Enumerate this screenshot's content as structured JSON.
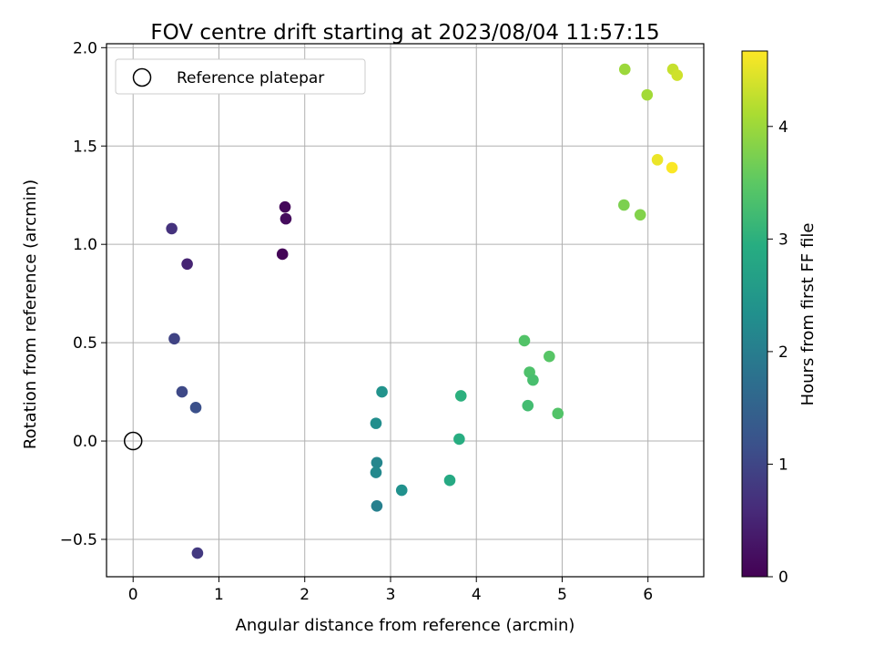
{
  "chart_data": {
    "type": "scatter",
    "title": "FOV centre drift starting at 2023/08/04 11:57:15",
    "xlabel": "Angular distance from reference (arcmin)",
    "ylabel": "Rotation from reference (arcmin)",
    "xlim": [
      -0.31,
      6.65
    ],
    "ylim": [
      -0.69,
      2.02
    ],
    "x_ticks": [
      0,
      1,
      2,
      3,
      4,
      5,
      6
    ],
    "y_ticks": [
      -0.5,
      0.0,
      0.5,
      1.0,
      1.5,
      2.0
    ],
    "x_tick_labels": [
      "0",
      "1",
      "2",
      "3",
      "4",
      "5",
      "6"
    ],
    "y_tick_labels": [
      "−0.5",
      "0.0",
      "0.5",
      "1.0",
      "1.5",
      "2.0"
    ],
    "grid": true,
    "legend": {
      "position": "top-left",
      "label": "Reference platepar"
    },
    "reference_point": {
      "x": 0.0,
      "y": 0.0
    },
    "colorbar": {
      "label": "Hours from first FF file",
      "range": [
        0,
        4.67
      ],
      "ticks": [
        0,
        1,
        2,
        3,
        4
      ],
      "tick_labels": [
        "0",
        "1",
        "2",
        "3",
        "4"
      ],
      "colormap": "viridis"
    },
    "points": [
      {
        "x": 1.74,
        "y": 0.95,
        "c": 0.05
      },
      {
        "x": 1.77,
        "y": 1.19,
        "c": 0.1
      },
      {
        "x": 1.78,
        "y": 1.13,
        "c": 0.15
      },
      {
        "x": 0.63,
        "y": 0.9,
        "c": 0.5
      },
      {
        "x": 0.45,
        "y": 1.08,
        "c": 0.7
      },
      {
        "x": 0.75,
        "y": -0.57,
        "c": 0.8
      },
      {
        "x": 0.48,
        "y": 0.52,
        "c": 0.95
      },
      {
        "x": 0.57,
        "y": 0.25,
        "c": 1.05
      },
      {
        "x": 0.73,
        "y": 0.17,
        "c": 1.15
      },
      {
        "x": 2.84,
        "y": -0.33,
        "c": 2.05
      },
      {
        "x": 2.84,
        "y": -0.11,
        "c": 2.15
      },
      {
        "x": 2.83,
        "y": -0.16,
        "c": 2.2
      },
      {
        "x": 2.83,
        "y": 0.09,
        "c": 2.3
      },
      {
        "x": 2.9,
        "y": 0.25,
        "c": 2.4
      },
      {
        "x": 3.13,
        "y": -0.25,
        "c": 2.35
      },
      {
        "x": 3.69,
        "y": -0.2,
        "c": 2.85
      },
      {
        "x": 3.8,
        "y": 0.01,
        "c": 2.95
      },
      {
        "x": 3.82,
        "y": 0.23,
        "c": 3.0
      },
      {
        "x": 4.56,
        "y": 0.51,
        "c": 3.4
      },
      {
        "x": 4.62,
        "y": 0.35,
        "c": 3.35
      },
      {
        "x": 4.66,
        "y": 0.31,
        "c": 3.3
      },
      {
        "x": 4.6,
        "y": 0.18,
        "c": 3.25
      },
      {
        "x": 4.85,
        "y": 0.43,
        "c": 3.45
      },
      {
        "x": 4.95,
        "y": 0.14,
        "c": 3.4
      },
      {
        "x": 5.72,
        "y": 1.2,
        "c": 3.75
      },
      {
        "x": 5.91,
        "y": 1.15,
        "c": 3.8
      },
      {
        "x": 5.73,
        "y": 1.89,
        "c": 4.0
      },
      {
        "x": 5.99,
        "y": 1.76,
        "c": 4.05
      },
      {
        "x": 6.29,
        "y": 1.89,
        "c": 4.3
      },
      {
        "x": 6.34,
        "y": 1.86,
        "c": 4.35
      },
      {
        "x": 6.11,
        "y": 1.43,
        "c": 4.55
      },
      {
        "x": 6.28,
        "y": 1.39,
        "c": 4.65
      }
    ]
  }
}
